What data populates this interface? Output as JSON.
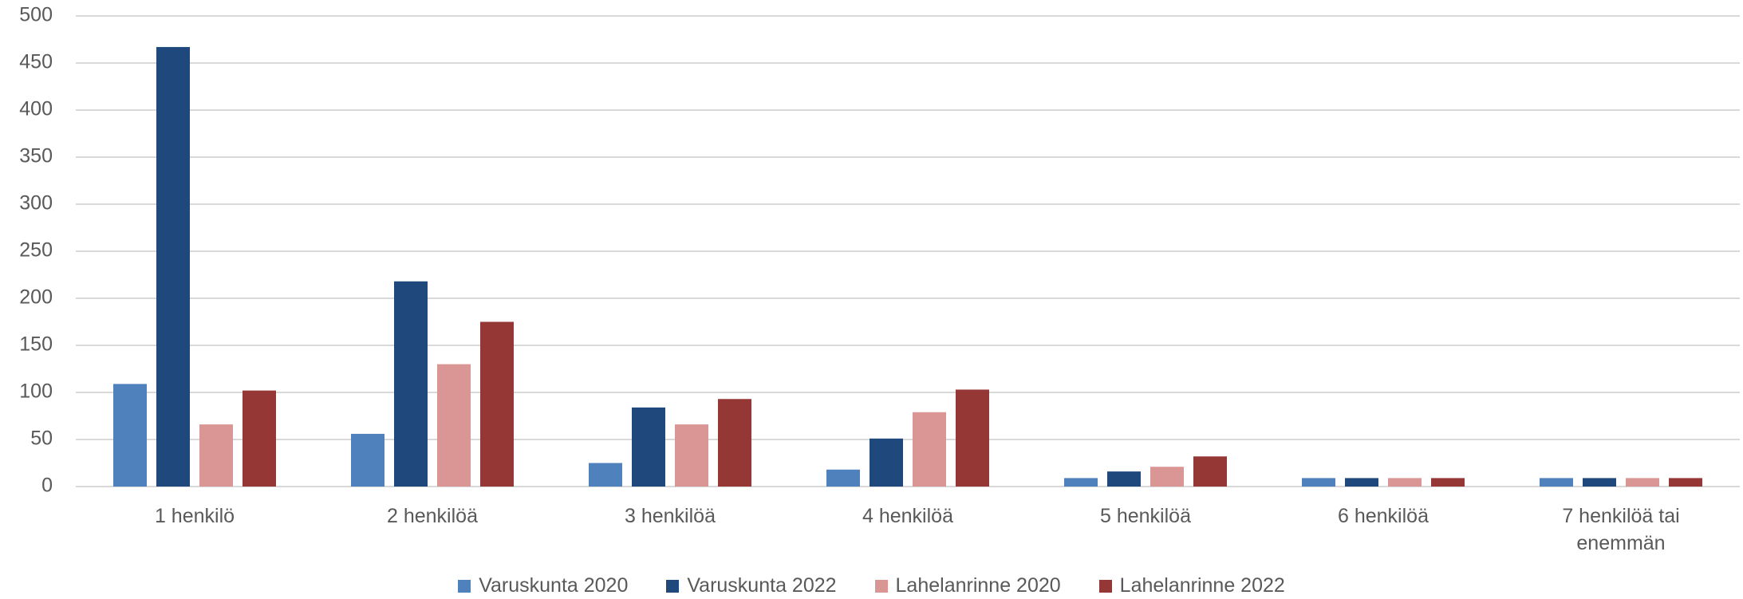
{
  "chart_data": {
    "type": "bar",
    "categories": [
      "1 henkilö",
      "2 henkilöä",
      "3 henkilöä",
      "4 henkilöä",
      "5 henkilöä",
      "6 henkilöä",
      "7 henkilöä tai enemmän"
    ],
    "series": [
      {
        "name": "Varuskunta 2020",
        "color": "#4f81bd",
        "values": [
          109,
          56,
          25,
          18,
          9,
          9,
          9
        ]
      },
      {
        "name": "Varuskunta 2022",
        "color": "#1f497d",
        "values": [
          467,
          218,
          84,
          51,
          16,
          9,
          9
        ]
      },
      {
        "name": "Lahelanrinne 2020",
        "color": "#d99694",
        "values": [
          66,
          130,
          66,
          79,
          21,
          9,
          9
        ]
      },
      {
        "name": "Lahelanrinne 2022",
        "color": "#953735",
        "values": [
          102,
          175,
          93,
          103,
          32,
          9,
          9
        ]
      }
    ],
    "ylim": [
      0,
      500
    ],
    "yticks": [
      0,
      50,
      100,
      150,
      200,
      250,
      300,
      350,
      400,
      450,
      500
    ],
    "grid": true
  }
}
